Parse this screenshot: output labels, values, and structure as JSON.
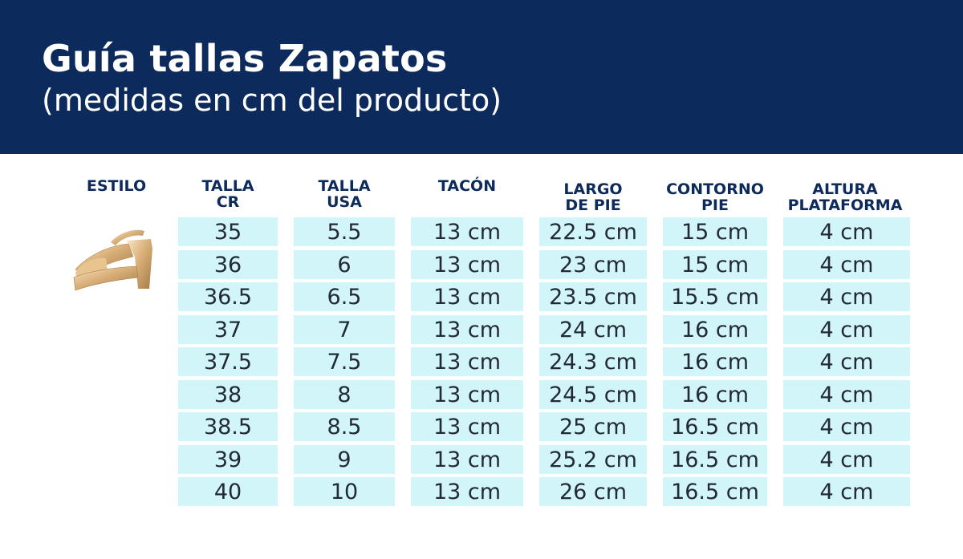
{
  "header": {
    "title": "Guía tallas Zapatos",
    "subtitle": "(medidas en cm del producto)",
    "bg_color": "#0c2a5b"
  },
  "columns": [
    {
      "key": "estilo",
      "line1": "ESTILO",
      "line2": ""
    },
    {
      "key": "talla_cr",
      "line1": "TALLA",
      "line2": "CR"
    },
    {
      "key": "talla_usa",
      "line1": "TALLA",
      "line2": "USA"
    },
    {
      "key": "tacon",
      "line1": "TACÓN",
      "line2": ""
    },
    {
      "key": "largo_pie",
      "line1": "LARGO",
      "line2": "DE PIE"
    },
    {
      "key": "contorno_pie",
      "line1": "CONTORNO",
      "line2": "PIE"
    },
    {
      "key": "altura_plataforma",
      "line1": "ALTURA",
      "line2": "PLATAFORMA"
    }
  ],
  "product_image": "gold-platform-sandal",
  "cell_color": "#d2f5fa",
  "rows": [
    {
      "talla_cr": "35",
      "talla_usa": "5.5",
      "tacon": "13 cm",
      "largo_pie": "22.5 cm",
      "contorno_pie": "15 cm",
      "altura_plataforma": "4 cm"
    },
    {
      "talla_cr": "36",
      "talla_usa": "6",
      "tacon": "13 cm",
      "largo_pie": "23 cm",
      "contorno_pie": "15 cm",
      "altura_plataforma": "4 cm"
    },
    {
      "talla_cr": "36.5",
      "talla_usa": "6.5",
      "tacon": "13 cm",
      "largo_pie": "23.5 cm",
      "contorno_pie": "15.5 cm",
      "altura_plataforma": "4 cm"
    },
    {
      "talla_cr": "37",
      "talla_usa": "7",
      "tacon": "13 cm",
      "largo_pie": "24 cm",
      "contorno_pie": "16 cm",
      "altura_plataforma": "4 cm"
    },
    {
      "talla_cr": "37.5",
      "talla_usa": "7.5",
      "tacon": "13 cm",
      "largo_pie": "24.3 cm",
      "contorno_pie": "16 cm",
      "altura_plataforma": "4 cm"
    },
    {
      "talla_cr": "38",
      "talla_usa": "8",
      "tacon": "13 cm",
      "largo_pie": "24.5 cm",
      "contorno_pie": "16 cm",
      "altura_plataforma": "4 cm"
    },
    {
      "talla_cr": "38.5",
      "talla_usa": "8.5",
      "tacon": "13 cm",
      "largo_pie": "25 cm",
      "contorno_pie": "16.5 cm",
      "altura_plataforma": "4 cm"
    },
    {
      "talla_cr": "39",
      "talla_usa": "9",
      "tacon": "13 cm",
      "largo_pie": "25.2 cm",
      "contorno_pie": "16.5  cm",
      "altura_plataforma": "4 cm"
    },
    {
      "talla_cr": "40",
      "talla_usa": "10",
      "tacon": "13 cm",
      "largo_pie": "26 cm",
      "contorno_pie": "16.5  cm",
      "altura_plataforma": "4 cm"
    }
  ]
}
